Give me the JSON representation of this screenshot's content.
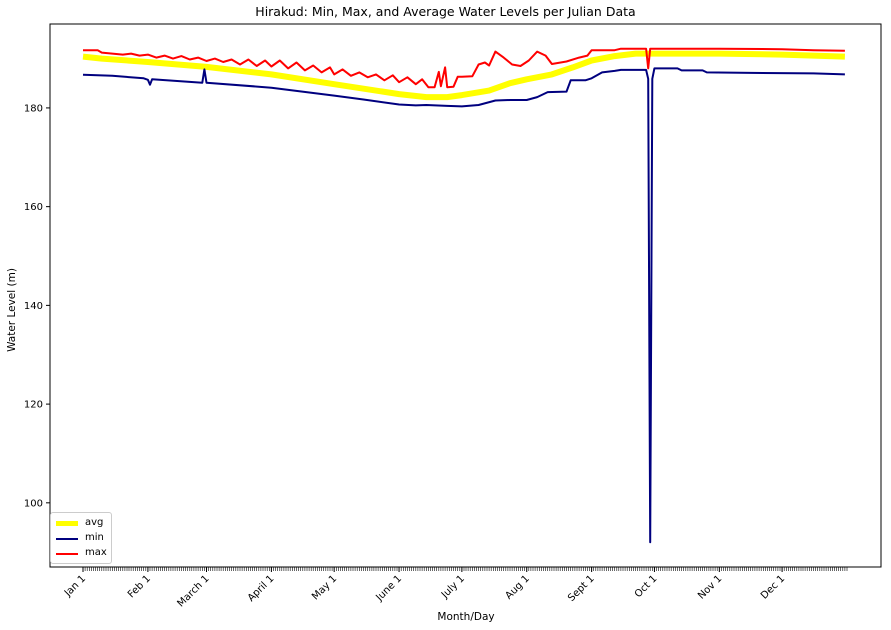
{
  "chart_data": {
    "type": "line",
    "title": "Hirakud: Min, Max, and Average Water Levels per Julian Data",
    "xlabel": "Month/Day",
    "ylabel": "Water Level (m)",
    "x_tick_labels": [
      "Jan 1",
      "Feb 1",
      "March 1",
      "April 1",
      "May 1",
      "June 1",
      "July 1",
      "Aug 1",
      "Sept 1",
      "Oct 1",
      "Nov 1",
      "Dec 1"
    ],
    "x_tick_days": [
      1,
      32,
      60,
      91,
      121,
      152,
      182,
      213,
      244,
      274,
      305,
      335
    ],
    "xlim": [
      1,
      366
    ],
    "ylim": [
      87,
      197
    ],
    "y_ticks": [
      100,
      120,
      140,
      160,
      180
    ],
    "grid": false,
    "legend_position": "lower-left",
    "series": [
      {
        "name": "avg",
        "color": "#ffff00",
        "points": [
          [
            1,
            190.4
          ],
          [
            10,
            190.0
          ],
          [
            32,
            189.3
          ],
          [
            60,
            188.3
          ],
          [
            91,
            186.8
          ],
          [
            121,
            184.8
          ],
          [
            152,
            182.8
          ],
          [
            165,
            182.2
          ],
          [
            175,
            182.2
          ],
          [
            182,
            182.6
          ],
          [
            195,
            183.5
          ],
          [
            205,
            185.0
          ],
          [
            213,
            185.8
          ],
          [
            225,
            186.8
          ],
          [
            235,
            188.2
          ],
          [
            244,
            189.6
          ],
          [
            255,
            190.5
          ],
          [
            265,
            191.0
          ],
          [
            274,
            191.0
          ],
          [
            305,
            191.0
          ],
          [
            335,
            190.8
          ],
          [
            365,
            190.4
          ]
        ]
      },
      {
        "name": "min",
        "color": "#00007f",
        "points": [
          [
            1,
            186.7
          ],
          [
            15,
            186.5
          ],
          [
            30,
            186.0
          ],
          [
            32,
            185.7
          ],
          [
            33,
            184.7
          ],
          [
            34,
            185.8
          ],
          [
            58,
            185.1
          ],
          [
            59,
            187.8
          ],
          [
            60,
            185.1
          ],
          [
            91,
            184.1
          ],
          [
            121,
            182.5
          ],
          [
            135,
            181.7
          ],
          [
            152,
            180.7
          ],
          [
            160,
            180.5
          ],
          [
            165,
            180.6
          ],
          [
            175,
            180.4
          ],
          [
            182,
            180.3
          ],
          [
            190,
            180.6
          ],
          [
            198,
            181.5
          ],
          [
            205,
            181.6
          ],
          [
            213,
            181.6
          ],
          [
            218,
            182.2
          ],
          [
            223,
            183.2
          ],
          [
            232,
            183.3
          ],
          [
            234,
            185.6
          ],
          [
            241,
            185.6
          ],
          [
            244,
            186.0
          ],
          [
            249,
            187.2
          ],
          [
            255,
            187.5
          ],
          [
            258,
            187.7
          ],
          [
            270,
            187.7
          ],
          [
            271,
            185.9
          ],
          [
            272,
            92.0
          ],
          [
            273,
            185.9
          ],
          [
            274,
            188.0
          ],
          [
            285,
            188.0
          ],
          [
            287,
            187.6
          ],
          [
            297,
            187.6
          ],
          [
            299,
            187.2
          ],
          [
            320,
            187.1
          ],
          [
            350,
            187.0
          ],
          [
            365,
            186.8
          ]
        ]
      },
      {
        "name": "max",
        "color": "#ff0000",
        "points": [
          [
            1,
            191.7
          ],
          [
            8,
            191.7
          ],
          [
            10,
            191.2
          ],
          [
            20,
            190.8
          ],
          [
            24,
            191.0
          ],
          [
            28,
            190.6
          ],
          [
            32,
            190.8
          ],
          [
            36,
            190.2
          ],
          [
            40,
            190.6
          ],
          [
            44,
            190.0
          ],
          [
            48,
            190.5
          ],
          [
            52,
            189.8
          ],
          [
            56,
            190.2
          ],
          [
            60,
            189.5
          ],
          [
            64,
            190.0
          ],
          [
            68,
            189.3
          ],
          [
            72,
            189.8
          ],
          [
            76,
            188.8
          ],
          [
            80,
            189.8
          ],
          [
            84,
            188.5
          ],
          [
            88,
            189.6
          ],
          [
            91,
            188.4
          ],
          [
            95,
            189.6
          ],
          [
            99,
            188.0
          ],
          [
            103,
            189.2
          ],
          [
            107,
            187.6
          ],
          [
            111,
            188.6
          ],
          [
            115,
            187.2
          ],
          [
            119,
            188.2
          ],
          [
            121,
            186.8
          ],
          [
            125,
            187.8
          ],
          [
            129,
            186.5
          ],
          [
            133,
            187.2
          ],
          [
            137,
            186.2
          ],
          [
            141,
            186.8
          ],
          [
            145,
            185.6
          ],
          [
            149,
            186.6
          ],
          [
            152,
            185.2
          ],
          [
            156,
            186.2
          ],
          [
            160,
            184.8
          ],
          [
            163,
            185.8
          ],
          [
            166,
            184.2
          ],
          [
            169,
            184.2
          ],
          [
            171,
            187.3
          ],
          [
            172,
            184.4
          ],
          [
            174,
            188.2
          ],
          [
            175,
            184.2
          ],
          [
            178,
            184.3
          ],
          [
            180,
            186.3
          ],
          [
            182,
            186.3
          ],
          [
            187,
            186.4
          ],
          [
            190,
            188.8
          ],
          [
            193,
            189.2
          ],
          [
            195,
            188.6
          ],
          [
            198,
            191.4
          ],
          [
            202,
            190.2
          ],
          [
            206,
            188.8
          ],
          [
            210,
            188.5
          ],
          [
            214,
            189.6
          ],
          [
            218,
            191.4
          ],
          [
            222,
            190.6
          ],
          [
            225,
            188.9
          ],
          [
            232,
            189.4
          ],
          [
            238,
            190.2
          ],
          [
            242,
            190.6
          ],
          [
            244,
            191.7
          ],
          [
            255,
            191.7
          ],
          [
            258,
            192.0
          ],
          [
            270,
            192.0
          ],
          [
            271,
            188.0
          ],
          [
            272,
            192.0
          ],
          [
            305,
            192.0
          ],
          [
            335,
            191.9
          ],
          [
            350,
            191.7
          ],
          [
            365,
            191.6
          ]
        ]
      }
    ]
  }
}
